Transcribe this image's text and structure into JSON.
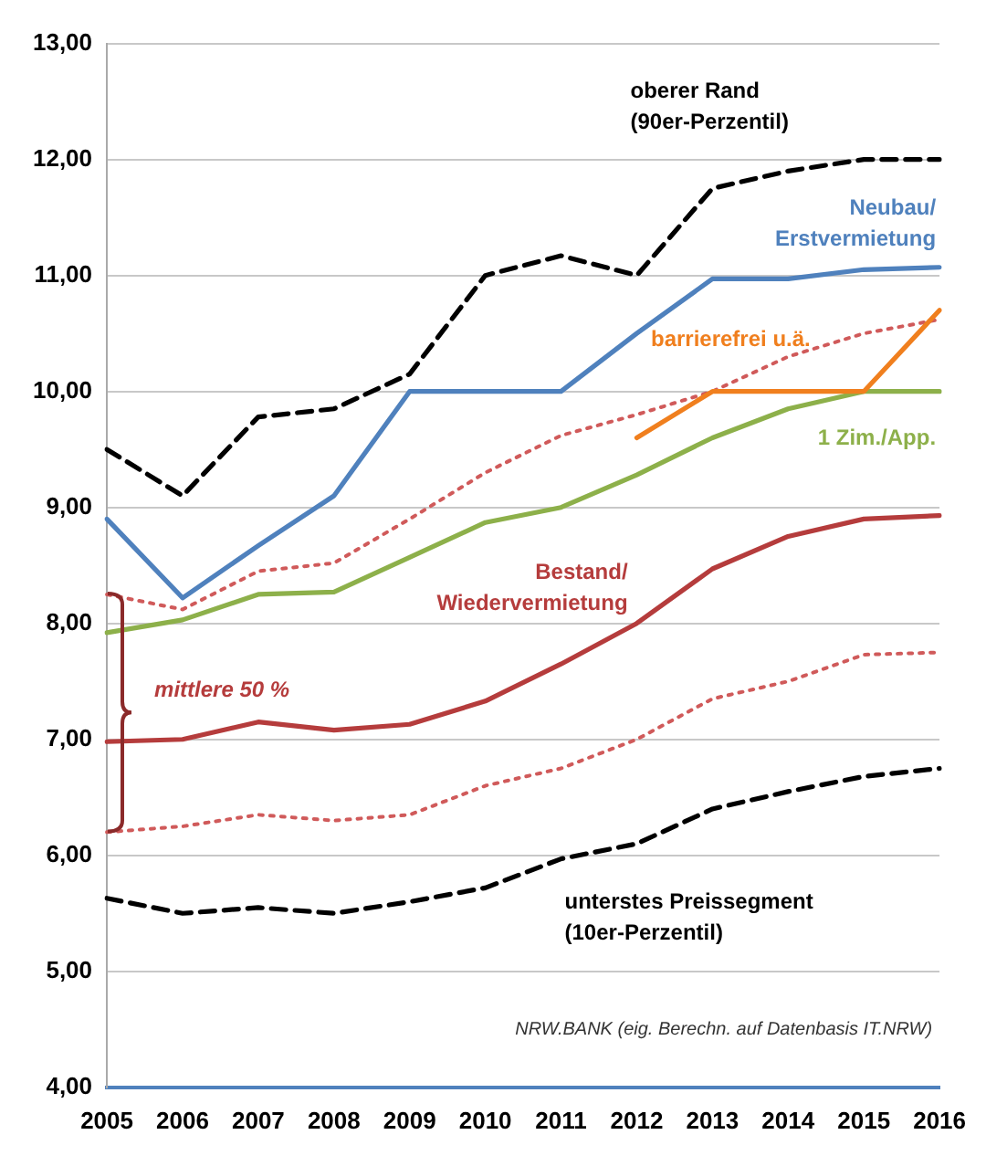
{
  "chart_data": {
    "type": "line",
    "categories": [
      "2005",
      "2006",
      "2007",
      "2008",
      "2009",
      "2010",
      "2011",
      "2012",
      "2013",
      "2014",
      "2015",
      "2016"
    ],
    "ylim": [
      4,
      13
    ],
    "yticks": [
      {
        "value": 4,
        "label": "4,00"
      },
      {
        "value": 5,
        "label": "5,00"
      },
      {
        "value": 6,
        "label": "6,00"
      },
      {
        "value": 7,
        "label": "7,00"
      },
      {
        "value": 8,
        "label": "8,00"
      },
      {
        "value": 9,
        "label": "9,00"
      },
      {
        "value": 10,
        "label": "10,00"
      },
      {
        "value": 11,
        "label": "11,00"
      },
      {
        "value": 12,
        "label": "12,00"
      },
      {
        "value": 13,
        "label": "13,00"
      }
    ],
    "grid": "y",
    "legend": false,
    "marker": "none",
    "series": [
      {
        "name": "oberer Rand\n(90er-Perzentil)",
        "color": "#000000",
        "line_style": "dashed",
        "values": [
          9.5,
          9.1,
          9.78,
          9.85,
          10.15,
          11.0,
          11.17,
          11.0,
          11.75,
          11.9,
          12.0,
          12.0
        ]
      },
      {
        "name": "Neubau/\nErstvermietung",
        "color": "#4f81bd",
        "line_style": "solid",
        "values": [
          8.9,
          8.22,
          8.67,
          9.1,
          10.0,
          10.0,
          10.0,
          10.5,
          10.97,
          10.97,
          11.05,
          11.07
        ]
      },
      {
        "name": "barrierefrei u.ä.",
        "color": "#f07f1e",
        "line_style": "solid",
        "values": [
          null,
          null,
          null,
          null,
          null,
          null,
          null,
          9.6,
          10.0,
          10.0,
          10.0,
          10.7
        ]
      },
      {
        "name": "1 Zim./App.",
        "color": "#8db04a",
        "line_style": "solid",
        "values": [
          7.92,
          8.03,
          8.25,
          8.27,
          8.57,
          8.87,
          9.0,
          9.28,
          9.6,
          9.85,
          10.0,
          10.0
        ]
      },
      {
        "color": "#d05a5a",
        "line_style": "dotted",
        "values": [
          8.25,
          8.12,
          8.45,
          8.52,
          8.9,
          9.3,
          9.62,
          9.8,
          10.0,
          10.3,
          10.5,
          10.62
        ]
      },
      {
        "name": "Bestand/\nWiedervermietung",
        "color": "#b53c3c",
        "line_style": "solid",
        "values": [
          6.98,
          7.0,
          7.15,
          7.08,
          7.13,
          7.33,
          7.65,
          8.0,
          8.47,
          8.75,
          8.9,
          8.93
        ]
      },
      {
        "color": "#d05a5a",
        "line_style": "dotted",
        "values": [
          6.2,
          6.25,
          6.35,
          6.3,
          6.35,
          6.6,
          6.75,
          7.0,
          7.35,
          7.5,
          7.73,
          7.75
        ]
      },
      {
        "name": "unterstes Preissegment\n(10er-Perzentil)",
        "color": "#000000",
        "line_style": "dashed",
        "values": [
          5.63,
          5.5,
          5.55,
          5.5,
          5.6,
          5.72,
          5.97,
          6.1,
          6.4,
          6.55,
          6.68,
          6.75
        ]
      }
    ],
    "annotations": [
      "mittlere 50 %",
      "NRW.BANK (eig. Berechn. auf Datenbasis IT.NRW)"
    ]
  }
}
